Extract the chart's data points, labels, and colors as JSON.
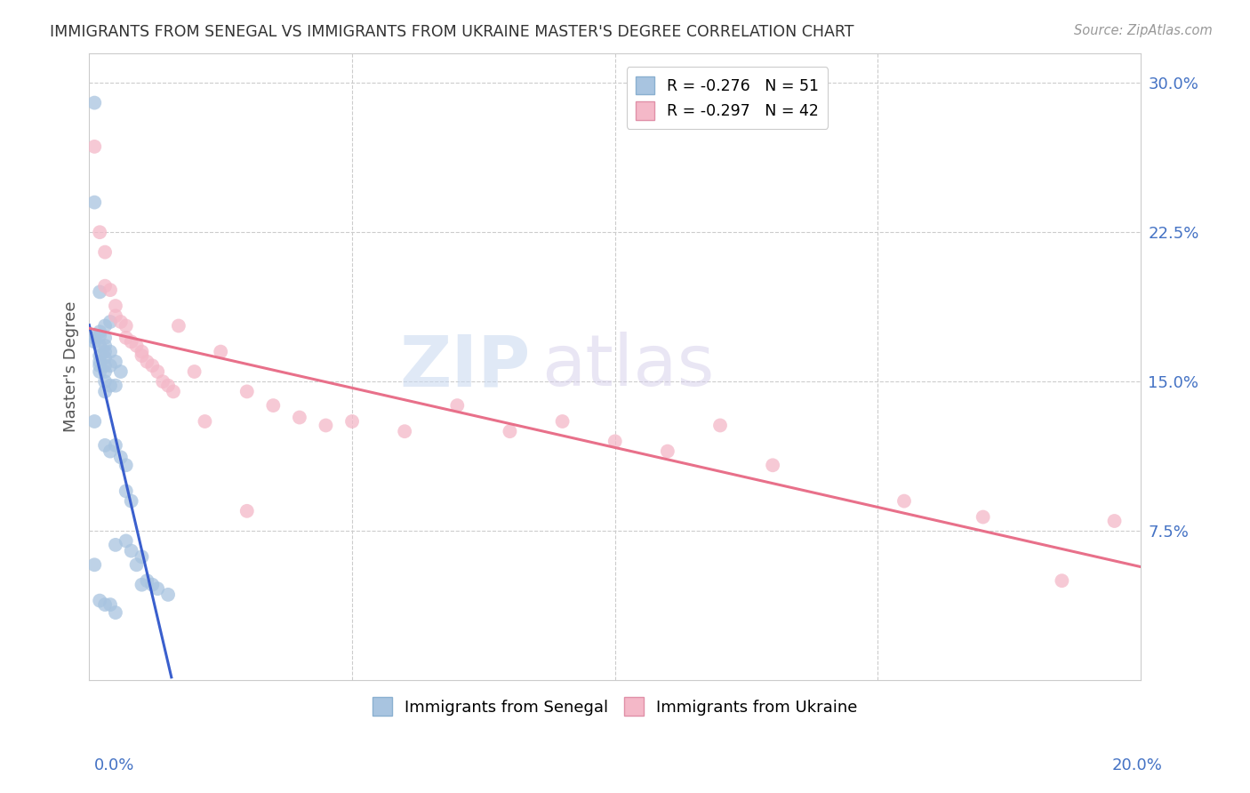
{
  "title": "IMMIGRANTS FROM SENEGAL VS IMMIGRANTS FROM UKRAINE MASTER'S DEGREE CORRELATION CHART",
  "source": "Source: ZipAtlas.com",
  "ylabel": "Master's Degree",
  "xmin": 0.0,
  "xmax": 0.2,
  "ymin": 0.0,
  "ymax": 0.315,
  "ytick_vals": [
    0.075,
    0.15,
    0.225,
    0.3
  ],
  "ytick_labels": [
    "7.5%",
    "15.0%",
    "22.5%",
    "30.0%"
  ],
  "xtick_vals": [
    0.05,
    0.1,
    0.15
  ],
  "senegal_color": "#a8c4e0",
  "ukraine_color": "#f4b8c8",
  "senegal_line_color": "#3a5fcd",
  "ukraine_line_color": "#e8708a",
  "watermark_zip": "ZIP",
  "watermark_atlas": "atlas",
  "legend_label_senegal": "R = -0.276   N = 51",
  "legend_label_ukraine": "R = -0.297   N = 42",
  "bottom_label_senegal": "Immigrants from Senegal",
  "bottom_label_ukraine": "Immigrants from Ukraine",
  "senegal_x": [
    0.001,
    0.001,
    0.001,
    0.001,
    0.002,
    0.002,
    0.002,
    0.002,
    0.002,
    0.002,
    0.002,
    0.002,
    0.003,
    0.003,
    0.003,
    0.003,
    0.003,
    0.003,
    0.003,
    0.003,
    0.003,
    0.003,
    0.004,
    0.004,
    0.004,
    0.004,
    0.004,
    0.005,
    0.005,
    0.005,
    0.005,
    0.006,
    0.006,
    0.007,
    0.007,
    0.007,
    0.008,
    0.008,
    0.009,
    0.01,
    0.01,
    0.011,
    0.012,
    0.013,
    0.015,
    0.001,
    0.001,
    0.002,
    0.003,
    0.004,
    0.005
  ],
  "senegal_y": [
    0.29,
    0.172,
    0.17,
    0.13,
    0.195,
    0.175,
    0.173,
    0.168,
    0.163,
    0.16,
    0.158,
    0.155,
    0.178,
    0.172,
    0.168,
    0.165,
    0.162,
    0.158,
    0.155,
    0.15,
    0.145,
    0.118,
    0.18,
    0.165,
    0.158,
    0.148,
    0.115,
    0.16,
    0.148,
    0.118,
    0.068,
    0.155,
    0.112,
    0.108,
    0.095,
    0.07,
    0.09,
    0.065,
    0.058,
    0.062,
    0.048,
    0.05,
    0.048,
    0.046,
    0.043,
    0.24,
    0.058,
    0.04,
    0.038,
    0.038,
    0.034
  ],
  "ukraine_x": [
    0.001,
    0.002,
    0.003,
    0.003,
    0.004,
    0.005,
    0.005,
    0.006,
    0.007,
    0.007,
    0.008,
    0.009,
    0.01,
    0.01,
    0.011,
    0.012,
    0.013,
    0.014,
    0.015,
    0.016,
    0.017,
    0.02,
    0.022,
    0.025,
    0.03,
    0.03,
    0.035,
    0.04,
    0.045,
    0.05,
    0.06,
    0.07,
    0.08,
    0.09,
    0.1,
    0.11,
    0.12,
    0.13,
    0.155,
    0.17,
    0.185,
    0.195
  ],
  "ukraine_y": [
    0.268,
    0.225,
    0.215,
    0.198,
    0.196,
    0.188,
    0.183,
    0.18,
    0.178,
    0.172,
    0.17,
    0.168,
    0.165,
    0.163,
    0.16,
    0.158,
    0.155,
    0.15,
    0.148,
    0.145,
    0.178,
    0.155,
    0.13,
    0.165,
    0.145,
    0.085,
    0.138,
    0.132,
    0.128,
    0.13,
    0.125,
    0.138,
    0.125,
    0.13,
    0.12,
    0.115,
    0.128,
    0.108,
    0.09,
    0.082,
    0.05,
    0.08
  ]
}
